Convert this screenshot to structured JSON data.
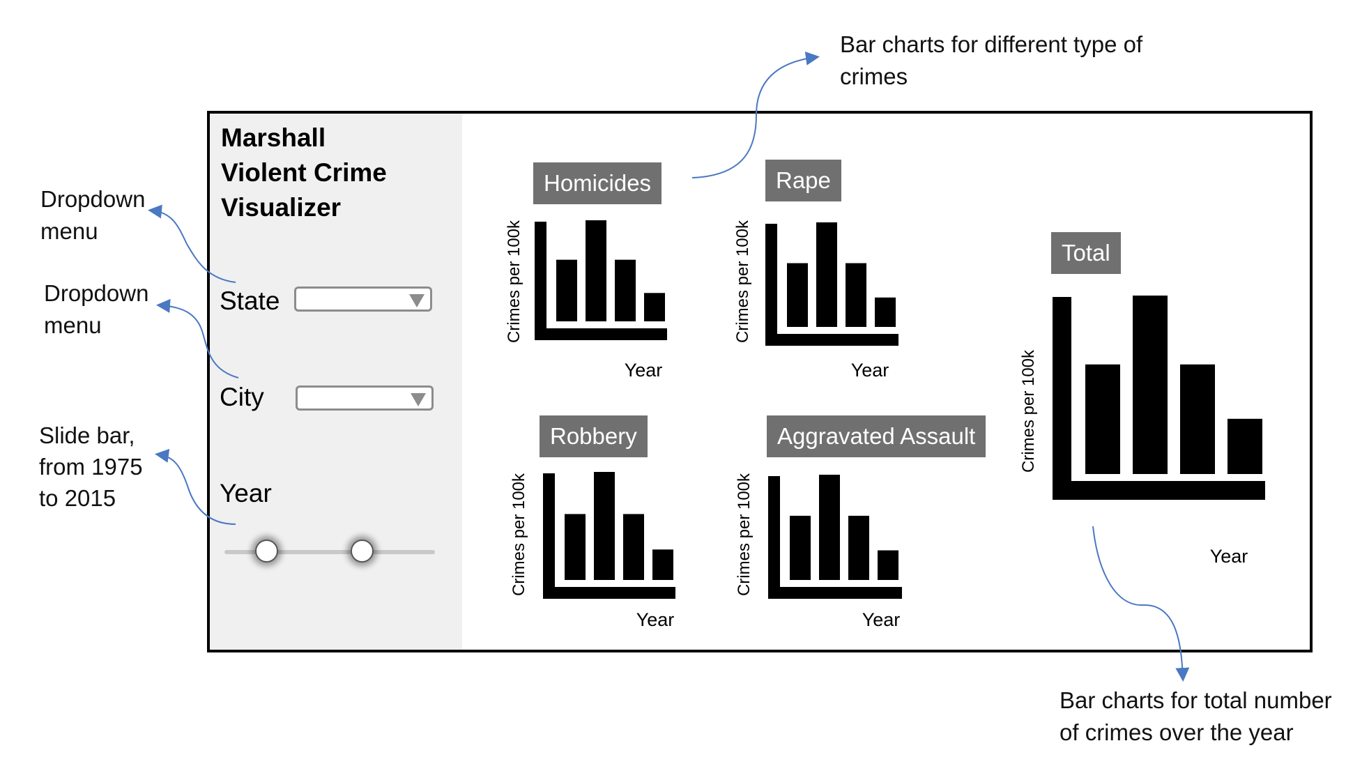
{
  "app": {
    "title_lines": [
      "Marshall",
      "Violent Crime",
      "Visualizer"
    ],
    "state_label": "State",
    "city_label": "City",
    "year_label": "Year",
    "state_value": "",
    "city_value": ""
  },
  "charts": [
    {
      "id": "homicides",
      "title": "Homicides",
      "ylabel": "Crimes per 100k",
      "xlabel": "Year",
      "values": [
        0.62,
        1.0,
        0.62,
        0.3
      ]
    },
    {
      "id": "rape",
      "title": "Rape",
      "ylabel": "Crimes per 100k",
      "xlabel": "Year",
      "values": [
        0.62,
        1.0,
        0.62,
        0.3
      ]
    },
    {
      "id": "robbery",
      "title": "Robbery",
      "ylabel": "Crimes per 100k",
      "xlabel": "Year",
      "values": [
        0.62,
        1.0,
        0.62,
        0.3
      ]
    },
    {
      "id": "aggravated-assault",
      "title": "Aggravated Assault",
      "ylabel": "Crimes per 100k",
      "xlabel": "Year",
      "values": [
        0.62,
        1.0,
        0.62,
        0.3
      ]
    },
    {
      "id": "total",
      "title": "Total",
      "ylabel": "Crimes per 100k",
      "xlabel": "Year",
      "values": [
        0.62,
        1.0,
        0.62,
        0.32
      ]
    }
  ],
  "annotations": {
    "dropdown_state": "Dropdown\nmenu",
    "dropdown_city": "Dropdown\nmenu",
    "slider": "Slide bar,\nfrom 1975\nto 2015",
    "type_charts": "Bar charts for different type of\ncrimes",
    "total_chart": "Bar charts for total number\nof crimes over the year"
  },
  "colors": {
    "annotation_arrow": "#4a78c2",
    "title_badge": "#707070",
    "sidebar": "#f0f0f0"
  }
}
